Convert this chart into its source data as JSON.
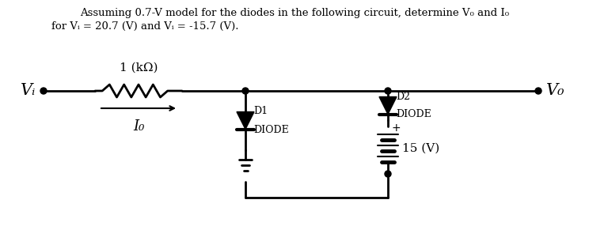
{
  "title_line1": "Assuming 0.7-V model for the diodes in the following circuit, determine V₀ and I₀",
  "title_line2": "for Vᵢ = 20.7 (V) and Vᵢ = -15.7 (V).",
  "resistor_label": "1 (kΩ)",
  "label_Vi": "Vᵢ",
  "label_Vo": "V₀",
  "label_Io": "I₀",
  "label_D1": "D1",
  "label_D1_type": "DIODE",
  "label_D2": "D2",
  "label_D2_type": "DIODE",
  "label_battery": "15 (V)",
  "bg_color": "#ffffff",
  "line_color": "#000000",
  "text_color": "#000000",
  "figsize": [
    7.44,
    3.1
  ],
  "dpi": 100
}
